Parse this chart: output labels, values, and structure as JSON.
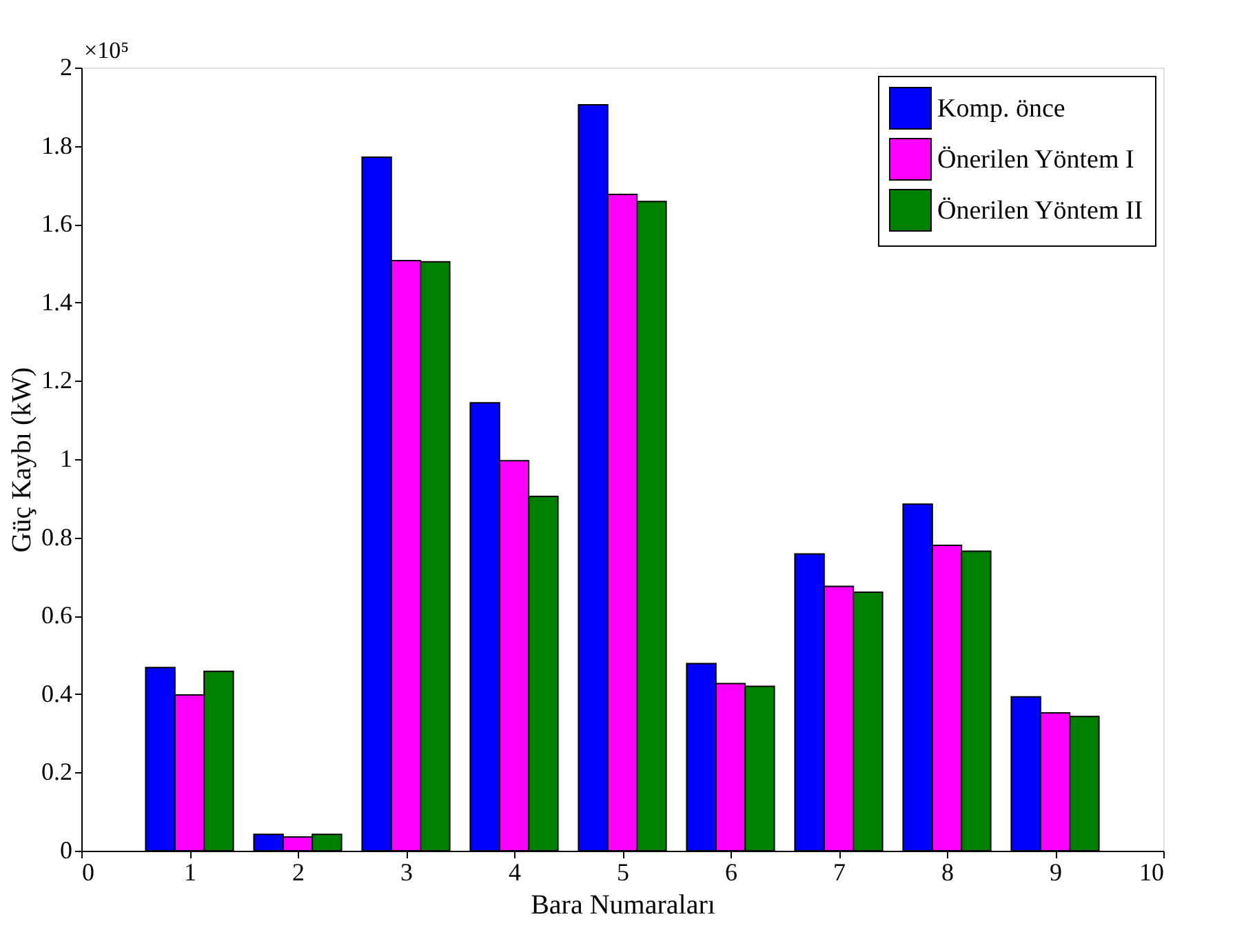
{
  "chart_data": {
    "type": "bar",
    "xlabel": "Bara Numaraları",
    "ylabel": "Güç Kaybı (kW)",
    "annotations": [
      "×10⁵"
    ],
    "x": [
      1,
      2,
      3,
      4,
      5,
      6,
      7,
      8,
      9
    ],
    "series": [
      {
        "name": "Komp. önce",
        "color": "#0000ff",
        "values": [
          0.468,
          0.042,
          1.771,
          1.144,
          1.905,
          0.478,
          0.758,
          0.885,
          0.393
        ]
      },
      {
        "name": "Önerilen Yöntem I",
        "color": "#ff00ff",
        "values": [
          0.398,
          0.035,
          1.507,
          0.996,
          1.676,
          0.427,
          0.675,
          0.78,
          0.352
        ]
      },
      {
        "name": "Önerilen Yöntem II",
        "color": "#008000",
        "values": [
          0.458,
          0.042,
          1.504,
          0.905,
          1.658,
          0.42,
          0.66,
          0.765,
          0.343
        ]
      }
    ],
    "xlim": [
      0,
      10
    ],
    "xticks": [
      0,
      1,
      2,
      3,
      4,
      5,
      6,
      7,
      8,
      9,
      10
    ],
    "ylim": [
      0,
      2
    ],
    "yticks": [
      0,
      0.2,
      0.4,
      0.6,
      0.8,
      1,
      1.2,
      1.4,
      1.6,
      1.8,
      2
    ],
    "grid": false,
    "legend": "top right"
  }
}
